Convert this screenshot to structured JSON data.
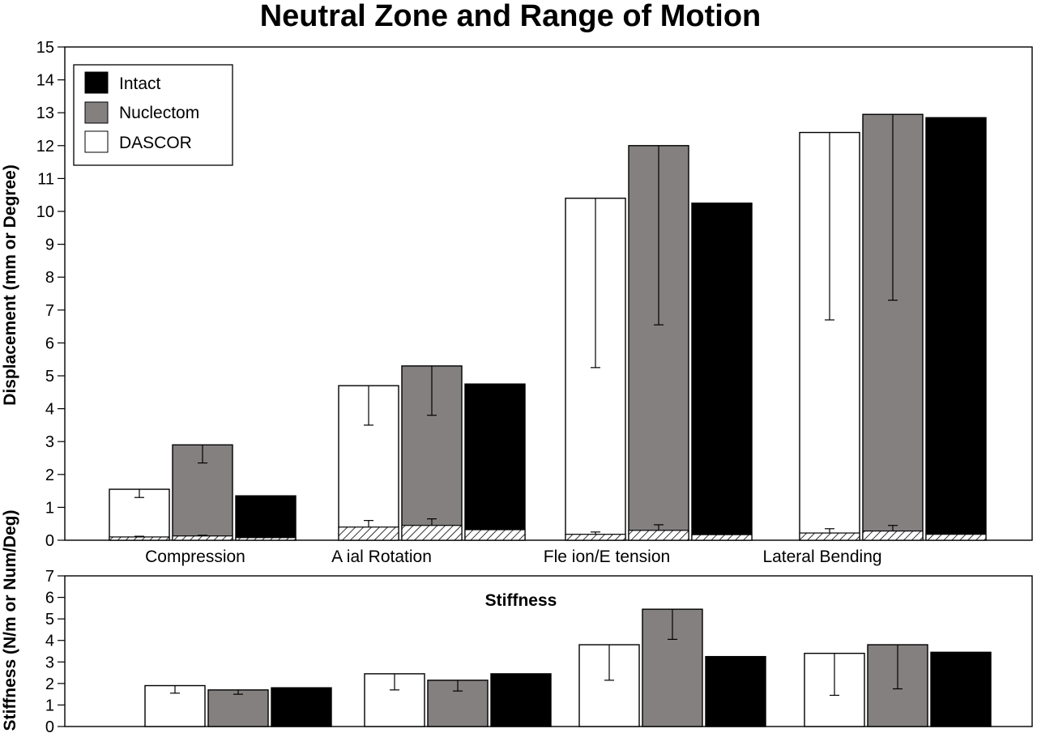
{
  "title": "Neutral Zone and Range of Motion",
  "legend": {
    "placement": "top-left",
    "entries": [
      {
        "label": "Intact",
        "color": "#000000"
      },
      {
        "label": "Nuclectom",
        "color": "#848080"
      },
      {
        "label": "DASCOR",
        "color": "#ffffff"
      }
    ]
  },
  "colors": {
    "Intact": "#000000",
    "Nuclectom": "#848080",
    "DASCOR": "#ffffff",
    "stroke": "#000000"
  },
  "chart_data": [
    {
      "type": "bar",
      "title": "Neutral Zone and Range of Motion",
      "ylabel": "Displacement (mm or Degree)",
      "xlabel": "",
      "ylim": [
        0,
        15
      ],
      "yticks": [
        "0",
        "1",
        "2",
        "3",
        "4",
        "5",
        "6",
        "7",
        "8",
        "9",
        "10",
        "11",
        "12",
        "13",
        "14",
        "15"
      ],
      "grid": false,
      "categories": [
        "Compression",
        "A  ial Rotation",
        "Fle  ion/E  tension",
        "Lateral Bending"
      ],
      "series": [
        {
          "name": "DASCOR",
          "values": [
            1.55,
            4.7,
            10.4,
            12.4
          ],
          "error_low": [
            1.3,
            3.5,
            5.25,
            6.7
          ],
          "neutral_zone": [
            0.1,
            0.4,
            0.18,
            0.22
          ],
          "neutral_zone_error_high": [
            0.12,
            0.6,
            0.25,
            0.35
          ]
        },
        {
          "name": "Nuclectom",
          "values": [
            2.9,
            5.3,
            12.0,
            12.95
          ],
          "error_low": [
            2.35,
            3.8,
            6.55,
            7.3
          ],
          "neutral_zone": [
            0.13,
            0.45,
            0.3,
            0.28
          ],
          "neutral_zone_error_high": [
            0.15,
            0.65,
            0.47,
            0.45
          ]
        },
        {
          "name": "Intact",
          "values": [
            1.35,
            4.75,
            10.25,
            12.85
          ],
          "neutral_zone": [
            0.08,
            0.32,
            0.17,
            0.18
          ]
        }
      ]
    },
    {
      "type": "bar",
      "title": "Stiffness",
      "ylabel": "Stiffness (N/m or Num/Deg)",
      "xlabel": "",
      "ylim": [
        0,
        7
      ],
      "yticks": [
        "0",
        "1",
        "2",
        "3",
        "4",
        "5",
        "6",
        "7"
      ],
      "grid": false,
      "categories": [
        "Compression",
        "A  ial Rotation",
        "Fle  ion/E  tension",
        "Lateral Bending"
      ],
      "series": [
        {
          "name": "DASCOR",
          "values": [
            1.9,
            2.45,
            3.8,
            3.4
          ],
          "error_low": [
            1.55,
            1.7,
            2.15,
            1.45
          ]
        },
        {
          "name": "Nuclectom",
          "values": [
            1.7,
            2.15,
            5.45,
            3.8
          ],
          "error_low": [
            1.5,
            1.65,
            4.05,
            1.75
          ]
        },
        {
          "name": "Intact",
          "values": [
            1.8,
            2.45,
            3.25,
            3.45
          ]
        }
      ]
    }
  ]
}
